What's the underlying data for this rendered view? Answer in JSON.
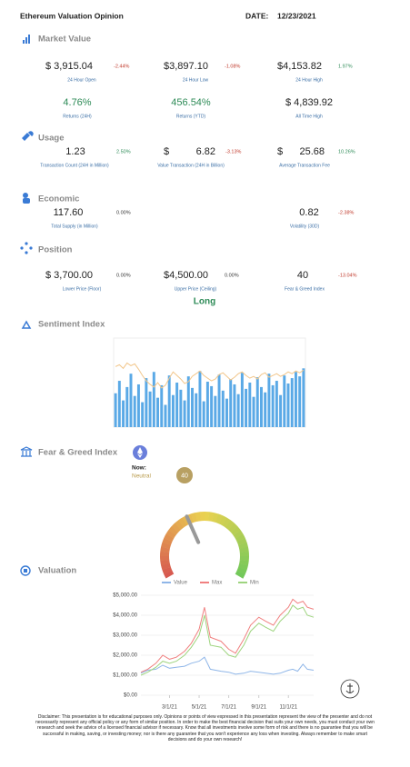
{
  "header": {
    "title": "Ethereum Valuation Opinion",
    "date_label": "DATE:",
    "date": "12/23/2021"
  },
  "market_value": {
    "title": "Market Value",
    "cells": [
      {
        "value": "$ 3,915.04",
        "change": "-2.44%",
        "label": "24 Hour Open"
      },
      {
        "value": "$3,897.10",
        "change": "-1.08%",
        "label": "24 Hour Low"
      },
      {
        "value": "$4,153.82",
        "change": "1.97%",
        "label": "24 Hour High"
      },
      {
        "value": "4.76%",
        "label": "Returns (24H)",
        "color": "#2e8b57"
      },
      {
        "value": "456.54%",
        "label": "Returns (YTD)",
        "color": "#2e8b57"
      },
      {
        "value": "$ 4,839.92",
        "label": "All Time High"
      }
    ]
  },
  "usage": {
    "title": "Usage",
    "cells": [
      {
        "value": "1.23",
        "change": "2.50%",
        "label": "Transaction Count (24H in Million)"
      },
      {
        "currency": "$",
        "value": "6.82",
        "change": "-3.13%",
        "label": "Value Transaction (24H in Billion)"
      },
      {
        "currency": "$",
        "value": "25.68",
        "change": "10.26%",
        "label": "Average Transaction Fee"
      }
    ]
  },
  "economic": {
    "title": "Economic",
    "cells": [
      {
        "value": "117.60",
        "change": "0.00%",
        "label": "Total Supply (in Million)"
      },
      {
        "value": "0.82",
        "change": "-2.38%",
        "label": "Volatility (30D)"
      }
    ]
  },
  "position": {
    "title": "Position",
    "cells": [
      {
        "value": "$ 3,700.00",
        "change": "0.00%",
        "label": "Lower Price (Floor)"
      },
      {
        "value": "$4,500.00",
        "change": "0.00%",
        "label": "Upper Price (Ceiling)"
      },
      {
        "value": "40",
        "change": "-13.04%",
        "label": "Fear & Greed Index"
      }
    ],
    "signal": "Long"
  },
  "fear_greed": {
    "now_label": "Now:",
    "status": "Neutral"
  },
  "chart_data": [
    {
      "type": "bar_line",
      "title": "Sentiment Index",
      "ylim": [
        0,
        100
      ],
      "series": [
        {
          "type": "bar",
          "color": "#5aa9e6",
          "values": [
            38,
            52,
            30,
            45,
            60,
            35,
            48,
            28,
            55,
            40,
            62,
            33,
            47,
            25,
            58,
            36,
            50,
            42,
            30,
            57,
            44,
            38,
            63,
            29,
            51,
            46,
            35,
            59,
            41,
            32,
            54,
            48,
            37,
            61,
            43,
            50,
            34,
            56,
            45,
            39,
            60,
            47,
            52,
            36,
            58,
            49,
            55,
            62,
            57,
            66
          ]
        },
        {
          "type": "line",
          "color": "#f2c68a",
          "values": [
            68,
            70,
            66,
            72,
            69,
            71,
            65,
            58,
            52,
            48,
            45,
            50,
            44,
            47,
            55,
            62,
            58,
            54,
            49,
            51,
            57,
            60,
            63,
            58,
            55,
            52,
            54,
            59,
            61,
            57,
            53,
            56,
            60,
            62,
            58,
            55,
            57,
            54,
            59,
            61,
            56,
            58,
            60,
            57,
            59,
            62,
            60,
            63,
            61,
            64
          ]
        }
      ]
    },
    {
      "type": "gauge",
      "title": "Fear & Greed Index",
      "value": 40,
      "ylim": [
        0,
        100
      ]
    },
    {
      "type": "line",
      "title": "Valuation",
      "x": [
        "1/1/21",
        "1/15/21",
        "2/1/21",
        "2/15/21",
        "3/1/21",
        "3/15/21",
        "4/1/21",
        "4/15/21",
        "5/1/21",
        "5/12/21",
        "5/24/21",
        "6/15/21",
        "7/1/21",
        "7/15/21",
        "8/1/21",
        "8/15/21",
        "9/1/21",
        "9/15/21",
        "10/1/21",
        "10/15/21",
        "11/1/21",
        "11/10/21",
        "11/20/21",
        "12/1/21",
        "12/10/21",
        "12/23/21"
      ],
      "xlim": [
        "1/1/21",
        "12/23/21"
      ],
      "xticks": [
        "3/1/21",
        "5/1/21",
        "7/1/21",
        "9/1/21",
        "11/1/21"
      ],
      "ylim": [
        0,
        5000
      ],
      "yticks": [
        {
          "value": 0,
          "label": "$0.00"
        },
        {
          "value": 1000,
          "label": "$1,000.00"
        },
        {
          "value": 2000,
          "label": "$2,000.00"
        },
        {
          "value": 3000,
          "label": "$3,000.00"
        },
        {
          "value": 4000,
          "label": "$4,000.00"
        },
        {
          "value": 5000,
          "label": "$5,000.00"
        }
      ],
      "grid": true,
      "series": [
        {
          "name": "Value",
          "color": "#8fb6e8",
          "values": [
            1100,
            1250,
            1300,
            1500,
            1350,
            1400,
            1450,
            1600,
            1700,
            1900,
            1300,
            1200,
            1150,
            1050,
            1100,
            1200,
            1150,
            1100,
            1050,
            1100,
            1250,
            1300,
            1200,
            1550,
            1300,
            1250
          ]
        },
        {
          "name": "Max",
          "color": "#f08080",
          "values": [
            1150,
            1300,
            1600,
            2000,
            1800,
            1900,
            2200,
            2600,
            3300,
            4400,
            2900,
            2700,
            2300,
            2100,
            2800,
            3500,
            3900,
            3700,
            3500,
            4000,
            4400,
            4800,
            4600,
            4700,
            4400,
            4300
          ]
        },
        {
          "name": "Min",
          "color": "#9ed47f",
          "values": [
            1000,
            1150,
            1400,
            1700,
            1600,
            1700,
            2000,
            2400,
            3000,
            4000,
            2500,
            2400,
            2000,
            1900,
            2500,
            3200,
            3600,
            3400,
            3200,
            3700,
            4100,
            4500,
            4300,
            4400,
            4000,
            3900
          ]
        }
      ]
    }
  ],
  "disclaimer": "Disclaimer: This presentation is for educational purposes only. Opinions or points of view expressed in this presentation represent the view of the presenter and do not necessarily represent any official policy or any form of similar position. In order to make the best financial decision that suits your own needs, you must conduct your own research and seek the advice of a licensed financial advisor if necessary. Know that all investments involve some form of risk and there is no guarantee that you will be successful in making, saving, or investing money; nor is there any guarantee that you won't experience any loss when investing. Always remember to make smart decisions and do your own research!"
}
